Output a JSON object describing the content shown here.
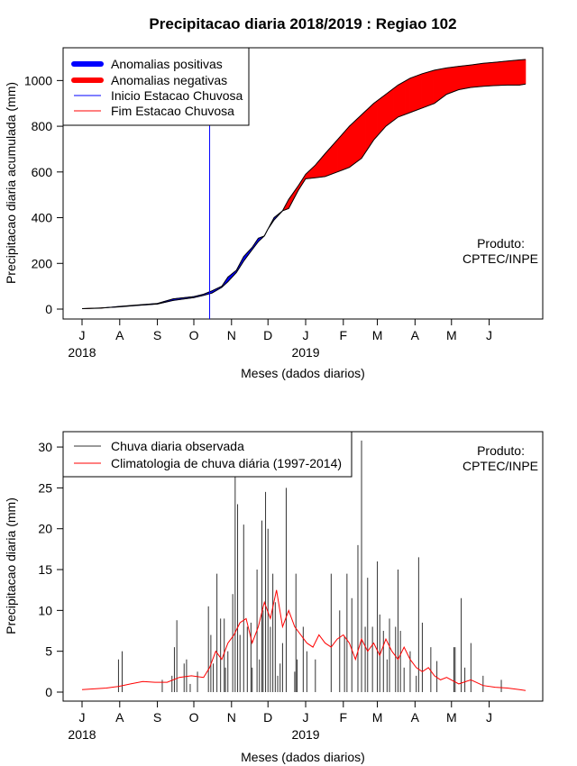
{
  "title": "Precipitacao diaria 2018/2019 : Regiao 102",
  "months": [
    "J",
    "A",
    "S",
    "O",
    "N",
    "D",
    "J",
    "F",
    "M",
    "A",
    "M",
    "J"
  ],
  "years": [
    {
      "label": "2018",
      "month_index": 0
    },
    {
      "label": "2019",
      "month_index": 6
    }
  ],
  "produto": [
    "Produto:",
    "CPTEC/INPE"
  ],
  "chart_data": [
    {
      "type": "area",
      "ylabel": "Precipitacao diaria acumulada (mm)",
      "xlabel": "Meses (dados diarios)",
      "ylim": [
        0,
        1100
      ],
      "yticks": [
        0,
        200,
        400,
        600,
        800,
        1000
      ],
      "x_unit": "days since 2018-07-01",
      "xlim": [
        0,
        365
      ],
      "legend": {
        "position": "top-left",
        "items": [
          {
            "label": "Anomalias positivas",
            "color": "#0000ff",
            "kind": "thick"
          },
          {
            "label": "Anomalias negativas",
            "color": "#ff0000",
            "kind": "thick"
          },
          {
            "label": "Inicio Estacao Chuvosa",
            "color": "#0000ff",
            "kind": "thin"
          },
          {
            "label": "Fim Estacao Chuvosa",
            "color": "#ff0000",
            "kind": "thin"
          }
        ]
      },
      "season_start_day": 105,
      "observed_cumulative": {
        "x": [
          0,
          15,
          31,
          46,
          62,
          75,
          92,
          100,
          107,
          115,
          120,
          127,
          133,
          140,
          145,
          150,
          153,
          158,
          165,
          170,
          178,
          184,
          192,
          200,
          210,
          220,
          230,
          240,
          250,
          260,
          270,
          280,
          290,
          300,
          310,
          320,
          330,
          340,
          350,
          360,
          365
        ],
        "y": [
          2,
          4,
          12,
          18,
          25,
          45,
          55,
          65,
          80,
          100,
          140,
          170,
          230,
          270,
          310,
          320,
          350,
          400,
          430,
          440,
          520,
          570,
          575,
          580,
          600,
          620,
          660,
          740,
          800,
          840,
          860,
          880,
          900,
          940,
          960,
          970,
          975,
          978,
          980,
          980,
          985
        ]
      },
      "climatology_cumulative": {
        "x": [
          0,
          15,
          31,
          46,
          62,
          75,
          92,
          100,
          107,
          115,
          120,
          127,
          133,
          140,
          145,
          150,
          153,
          158,
          165,
          170,
          178,
          184,
          192,
          200,
          210,
          220,
          230,
          240,
          250,
          260,
          270,
          280,
          290,
          300,
          310,
          320,
          330,
          340,
          350,
          360,
          365
        ],
        "y": [
          2,
          5,
          10,
          16,
          22,
          38,
          50,
          60,
          70,
          95,
          120,
          160,
          210,
          260,
          295,
          320,
          350,
          390,
          430,
          480,
          540,
          590,
          630,
          680,
          740,
          800,
          850,
          900,
          940,
          980,
          1010,
          1030,
          1045,
          1055,
          1062,
          1068,
          1075,
          1080,
          1085,
          1090,
          1092
        ]
      }
    },
    {
      "type": "bar",
      "ylabel": "Precipitacao diaria (mm)",
      "xlabel": "Meses (dados diarios)",
      "ylim": [
        0,
        31
      ],
      "yticks": [
        0,
        5,
        10,
        15,
        20,
        25,
        30
      ],
      "x_unit": "days since 2018-07-01",
      "xlim": [
        0,
        365
      ],
      "legend": {
        "position": "top-left",
        "items": [
          {
            "label": "Chuva diaria observada",
            "color": "#333333"
          },
          {
            "label": "Climatologia de chuva diária (1997-2014)",
            "color": "#ff0000"
          }
        ]
      },
      "observed_daily": {
        "x": [
          30,
          33,
          66,
          74,
          76,
          78,
          84,
          86,
          89,
          95,
          104,
          106,
          108,
          111,
          114,
          117,
          118,
          120,
          124,
          126,
          128,
          130,
          133,
          136,
          139,
          140,
          144,
          146,
          148,
          149,
          151,
          153,
          155,
          157,
          159,
          161,
          163,
          165,
          168,
          175,
          176,
          177,
          182,
          185,
          192,
          205,
          212,
          216,
          218,
          222,
          227,
          230,
          233,
          235,
          239,
          243,
          245,
          248,
          251,
          253,
          258,
          260,
          262,
          265,
          270,
          275,
          277,
          280,
          287,
          292,
          306,
          307,
          312,
          315,
          320,
          330,
          345
        ],
        "y": [
          4,
          5,
          1.5,
          2,
          5.5,
          8.8,
          3.5,
          4,
          1,
          2.5,
          10.5,
          7,
          3.5,
          14.5,
          9,
          9,
          3,
          5,
          12,
          26.5,
          23,
          7,
          20.5,
          8,
          8.5,
          3,
          15,
          4,
          21,
          10,
          24.5,
          20,
          8,
          14.5,
          11,
          2,
          3.5,
          6,
          25,
          2.5,
          14.5,
          4,
          8,
          5,
          4,
          14.5,
          10,
          6.8,
          14.5,
          11.5,
          18,
          30.8,
          8,
          14,
          8,
          16,
          9.5,
          7.5,
          4,
          9,
          8,
          15,
          7.5,
          3,
          5,
          2,
          16.5,
          8.5,
          5.5,
          3.8,
          5.5,
          5.5,
          11.5,
          3,
          6,
          2,
          1.5
        ]
      },
      "climatology_daily": {
        "x": [
          0,
          10,
          20,
          30,
          40,
          50,
          60,
          70,
          80,
          90,
          100,
          105,
          110,
          115,
          120,
          125,
          130,
          135,
          140,
          145,
          150,
          155,
          160,
          165,
          170,
          175,
          180,
          185,
          190,
          195,
          200,
          205,
          210,
          215,
          220,
          225,
          230,
          235,
          240,
          245,
          250,
          255,
          260,
          265,
          270,
          275,
          280,
          285,
          290,
          295,
          300,
          310,
          320,
          330,
          340,
          350,
          360,
          365
        ],
        "y": [
          0.3,
          0.4,
          0.5,
          0.7,
          1.0,
          1.3,
          1.2,
          1.2,
          1.8,
          2.0,
          1.8,
          3.0,
          5.0,
          4.0,
          6.0,
          7.0,
          8.5,
          9.0,
          6.0,
          8.0,
          11.0,
          9.0,
          12.5,
          8.0,
          10.0,
          8.0,
          7.0,
          6.0,
          5.5,
          7.0,
          6.0,
          5.5,
          6.5,
          7.0,
          6.0,
          4.0,
          6.5,
          5.0,
          6.0,
          4.5,
          6.5,
          5.0,
          4.0,
          5.5,
          4.0,
          3.0,
          2.5,
          3.0,
          2.0,
          1.5,
          1.8,
          1.0,
          1.5,
          0.8,
          0.6,
          0.5,
          0.3,
          0.2
        ]
      }
    }
  ]
}
